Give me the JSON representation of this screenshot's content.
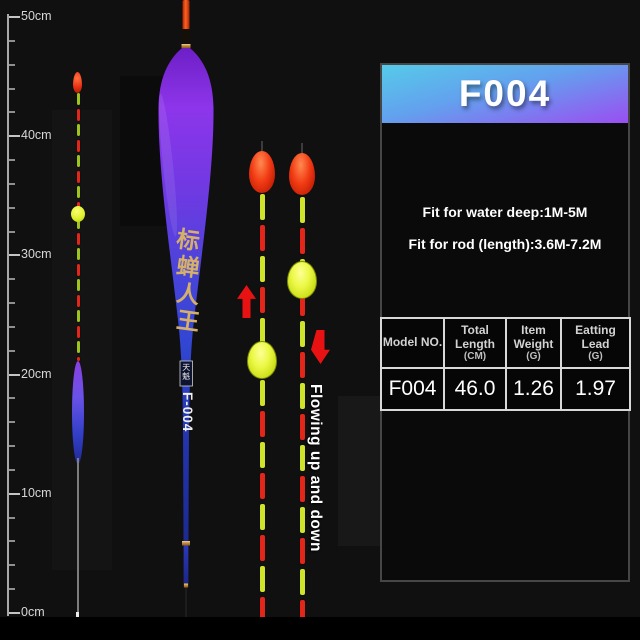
{
  "colors": {
    "background": "#101010",
    "header_gradient_top": "#55cbe9",
    "header_gradient_bottom": "#9a4ef2",
    "red_segment": "#e22619",
    "yellow_segment": "#cfe32b",
    "green_segment": "#9fc41e",
    "red_bead": "#f23c14",
    "yellow_bead": "#ecf846",
    "arrow_red": "#e81212",
    "gold_text": "#d4b068",
    "float_purple": "#8d35ea",
    "float_blue": "#2334ac",
    "table_border": "#d8d8d8",
    "white": "#ffffff"
  },
  "ruler": {
    "labels": [
      "50cm",
      "40cm",
      "30cm",
      "20cm",
      "10cm",
      "0cm"
    ]
  },
  "main_float": {
    "brand_text": "标蝉人王",
    "seal_text": "天魁",
    "model_text": "F-004"
  },
  "annotation": {
    "flow_label": "Flowing up and down"
  },
  "info_panel": {
    "model_title": "F004",
    "fit_water": "Fit for water deep:1M-5M",
    "fit_rod": "Fit for rod (length):3.6M-7.2M",
    "table": {
      "columns": [
        {
          "name": "Model NO.",
          "unit": ""
        },
        {
          "name": "Total Length",
          "unit": "(CM)"
        },
        {
          "name": "Item Weight",
          "unit": "(G)"
        },
        {
          "name": "Eatting Lead",
          "unit": "(G)"
        }
      ],
      "values": [
        "F004",
        "46.0",
        "1.26",
        "1.97"
      ]
    }
  }
}
